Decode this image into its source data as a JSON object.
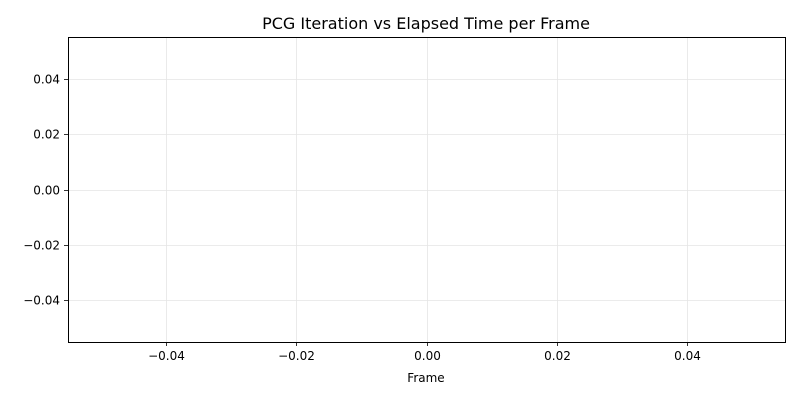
{
  "chart_data": {
    "type": "line",
    "title": "PCG Iteration vs Elapsed Time per Frame",
    "xlabel": "Frame",
    "ylabel": "",
    "series": [],
    "xlim": [
      -0.055,
      0.055
    ],
    "ylim": [
      -0.055,
      0.055
    ],
    "x_ticks": [
      -0.04,
      -0.02,
      0.0,
      0.02,
      0.04
    ],
    "y_ticks": [
      -0.04,
      -0.02,
      0.0,
      0.02,
      0.04
    ],
    "x_tick_labels": [
      "−0.04",
      "−0.02",
      "0.00",
      "0.02",
      "0.04"
    ],
    "y_tick_labels": [
      "−0.04",
      "−0.02",
      "0.00",
      "0.02",
      "0.04"
    ],
    "grid": true,
    "colors": {
      "grid": "#e5e5e5",
      "axes": "#000000",
      "text": "#000000"
    }
  }
}
